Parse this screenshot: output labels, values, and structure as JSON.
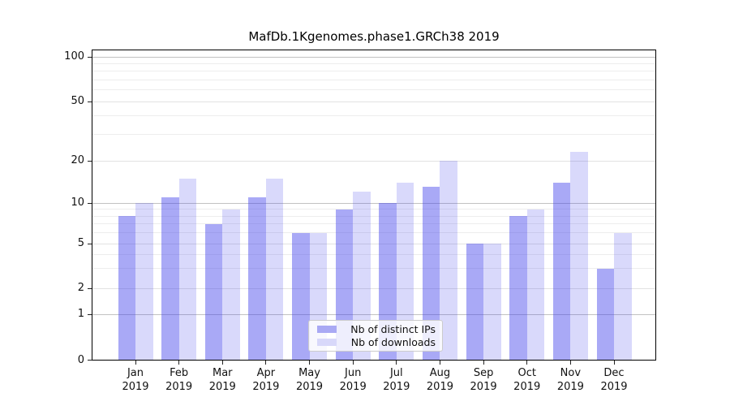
{
  "title": "MafDb.1Kgenomes.phase1.GRCh38 2019",
  "legend": {
    "items": [
      {
        "label": "Nb of distinct IPs",
        "swatch_color": "#a9a9f4"
      },
      {
        "label": "Nb of downloads",
        "swatch_color": "#d8d8fa"
      }
    ]
  },
  "colors": {
    "bar_ips": "rgba(60,60,235,0.44)",
    "bar_downloads": "rgba(60,60,235,0.195)",
    "grid_major": "#c2c2c2",
    "grid_mid": "#e2e2e2",
    "grid_minor": "#ededed"
  },
  "chart_data": {
    "type": "bar",
    "title": "MafDb.1Kgenomes.phase1.GRCh38 2019",
    "categories": [
      "Jan",
      "Feb",
      "Mar",
      "Apr",
      "May",
      "Jun",
      "Jul",
      "Aug",
      "Sep",
      "Oct",
      "Nov",
      "Dec"
    ],
    "category_year": "2019",
    "series": [
      {
        "name": "Nb of distinct IPs",
        "values": [
          8,
          11,
          7,
          11,
          6,
          9,
          10,
          13,
          5,
          8,
          14,
          3
        ]
      },
      {
        "name": "Nb of downloads",
        "values": [
          10,
          15,
          9,
          15,
          6,
          12,
          14,
          20,
          5,
          9,
          23,
          6
        ]
      }
    ],
    "yscale": "log-with-zero",
    "ytick_labels": [
      "100",
      "50",
      "20",
      "10",
      "5",
      "2",
      "1",
      "0"
    ],
    "ytick_values": [
      100,
      50,
      20,
      10,
      5,
      2,
      1,
      0
    ],
    "minor_grid_values": [
      3,
      4,
      6,
      7,
      8,
      9,
      30,
      40,
      60,
      70,
      80,
      90
    ],
    "ylim": [
      0,
      112
    ],
    "grid": true,
    "legend_position": "lower center"
  }
}
